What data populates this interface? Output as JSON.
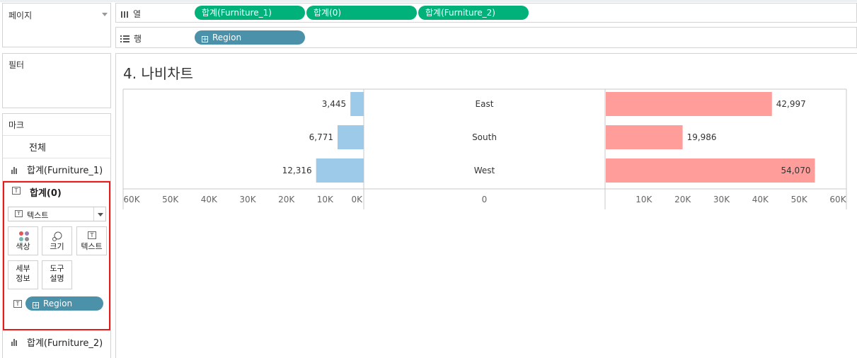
{
  "panels": {
    "pages": {
      "title": "페이지"
    },
    "filters": {
      "title": "필터"
    },
    "marks": {
      "title": "마크",
      "all_label": "전체",
      "rows": [
        {
          "label": "합계(Furniture_1)"
        },
        {
          "label": "합계(0)"
        },
        {
          "label": "합계(Furniture_2)"
        }
      ],
      "mark_type": "텍스트",
      "buttons": {
        "color": "색상",
        "size": "크기",
        "text": "텍스트",
        "detail_1": "세부",
        "detail_2": "정보",
        "tooltip_1": "도구",
        "tooltip_2": "설명"
      },
      "region_pill": "Region"
    }
  },
  "shelves": {
    "columns": {
      "label": "열",
      "pills": [
        "합계(Furniture_1)",
        "합계(0)",
        "합계(Furniture_2)"
      ]
    },
    "rows": {
      "label": "행",
      "pills": [
        "Region"
      ]
    }
  },
  "sheet_title": "4. 나비차트",
  "chart_data": {
    "type": "bar",
    "categories": [
      "East",
      "South",
      "West"
    ],
    "series": [
      {
        "name": "합계(Furniture_1)",
        "values": [
          3445,
          6771,
          12316
        ],
        "labels": [
          "3,445",
          "6,771",
          "12,316"
        ],
        "color": "#9ecae9",
        "direction": "reversed"
      },
      {
        "name": "합계(0)",
        "values": [
          0,
          0,
          0
        ]
      },
      {
        "name": "합계(Furniture_2)",
        "values": [
          42997,
          19986,
          54070
        ],
        "labels": [
          "42,997",
          "19,986",
          "54,070"
        ],
        "color": "#ff9d9a"
      }
    ],
    "left_axis": {
      "range": [
        60000,
        0
      ],
      "ticks": [
        "60K",
        "50K",
        "40K",
        "30K",
        "20K",
        "10K",
        "0K"
      ]
    },
    "middle_axis": {
      "ticks": [
        "0"
      ]
    },
    "right_axis": {
      "range": [
        0,
        60000
      ],
      "ticks": [
        "10K",
        "20K",
        "30K",
        "40K",
        "50K",
        "60K"
      ]
    }
  },
  "colors": {
    "pill_green": "#00b27a",
    "pill_blue": "#4a91a9",
    "highlight_red": "#e81b1b",
    "bar_blue": "#9ecae9",
    "bar_pink": "#ff9d9a"
  }
}
